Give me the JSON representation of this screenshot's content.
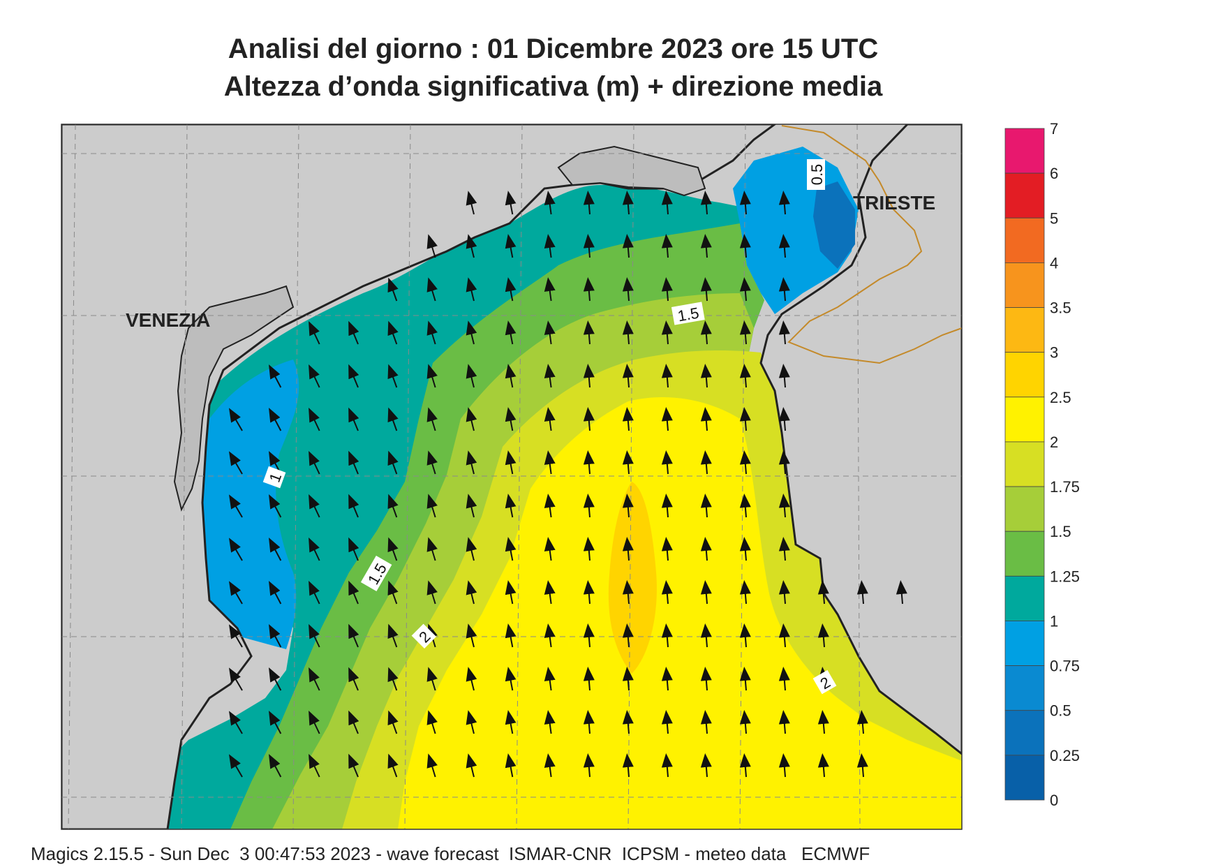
{
  "title": {
    "line1": "Analisi del giorno :  01 Dicembre  2023   ore 15 UTC",
    "line2": "Altezza d’onda significativa (m) + direzione media"
  },
  "places": [
    {
      "label": "VENEZIA"
    },
    {
      "label": "TRIESTE"
    }
  ],
  "contour_labels": [
    "0.5",
    "1.5",
    "1",
    "1.5",
    "2",
    "2"
  ],
  "colorbar": {
    "ticks": [
      "7",
      "6",
      "5",
      "4",
      "3.5",
      "3",
      "2.5",
      "2",
      "1.75",
      "1.5",
      "1.25",
      "1",
      "0.75",
      "0.5",
      "0.25",
      "0"
    ],
    "colors": [
      "#e8186e",
      "#e31d24",
      "#f26a21",
      "#f7941d",
      "#fdb813",
      "#ffd400",
      "#fff200",
      "#d7df23",
      "#a6ce39",
      "#6abd45",
      "#00a99d",
      "#00a0e3",
      "#0a8ad1",
      "#0b72bb",
      "#0860a8"
    ]
  },
  "land_color": "#cccccc",
  "arrow_direction": "north-northwest",
  "footer": "Magics 2.15.5 - Sun Dec  3 00:47:53 2023 - wave forecast  ISMAR-CNR  ICPSM - meteo data   ECMWF"
}
